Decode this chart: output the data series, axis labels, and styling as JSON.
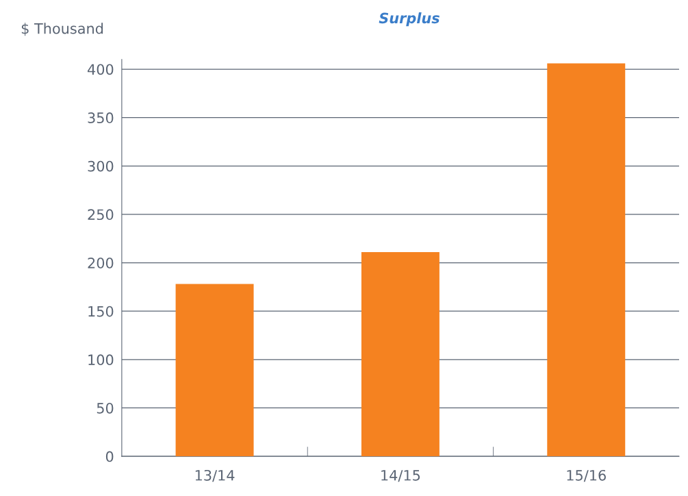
{
  "chart_data": {
    "type": "bar",
    "title": "Surplus",
    "ylabel": "$ Thousand",
    "categories": [
      "13/14",
      "14/15",
      "15/16"
    ],
    "series": [
      {
        "color": "#f58220",
        "values": [
          178,
          211,
          406
        ]
      }
    ],
    "ylim": [
      0,
      410
    ],
    "yticks": [
      0,
      50,
      100,
      150,
      200,
      250,
      300,
      350,
      400
    ],
    "grid": "y"
  }
}
